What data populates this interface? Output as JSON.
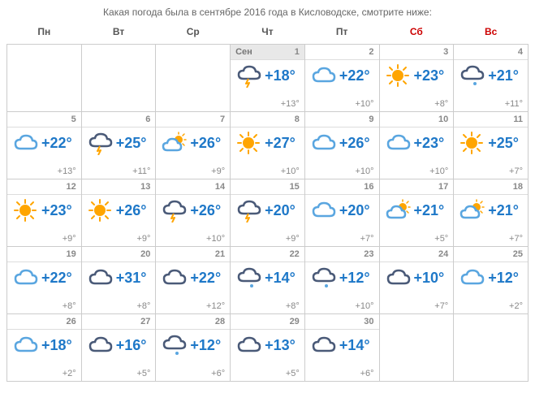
{
  "caption": "Какая погода была в сентябре 2016 года в Кисловодске, смотрите ниже:",
  "month_label": "Сен",
  "weekdays": [
    {
      "label": "Пн",
      "weekend": false
    },
    {
      "label": "Вт",
      "weekend": false
    },
    {
      "label": "Ср",
      "weekend": false
    },
    {
      "label": "Чт",
      "weekend": false
    },
    {
      "label": "Пт",
      "weekend": false
    },
    {
      "label": "Сб",
      "weekend": true
    },
    {
      "label": "Вс",
      "weekend": true
    }
  ],
  "colors": {
    "high_temp": "#1e78c8",
    "low_temp": "#888888",
    "weekend": "#cc0000",
    "border": "#cccccc",
    "cloud_blue": "#5aa6e0",
    "cloud_dark": "#4a5a78",
    "cloud_grey": "#8798b0",
    "sun": "#ffa500"
  },
  "icons": {
    "sun": "sun",
    "cloud_blue": "cloud_blue",
    "cloud_dark": "cloud_dark",
    "cloud_grey": "cloud_grey",
    "storm": "storm",
    "storm_blue": "storm_blue",
    "rain_dark": "rain_dark",
    "rain_blue": "rain_blue",
    "partly": "partly",
    "partly_blue": "partly_blue"
  },
  "grid": [
    [
      {
        "empty": true
      },
      {
        "empty": true
      },
      {
        "empty": true
      },
      {
        "day": 1,
        "first": true,
        "icon": "storm",
        "high": "+18°",
        "low": "+13°"
      },
      {
        "day": 2,
        "icon": "cloud_blue",
        "high": "+22°",
        "low": "+10°"
      },
      {
        "day": 3,
        "icon": "sun",
        "high": "+23°",
        "low": "+8°"
      },
      {
        "day": 4,
        "icon": "rain_dark",
        "high": "+21°",
        "low": "+11°"
      }
    ],
    [
      {
        "day": 5,
        "icon": "cloud_blue",
        "high": "+22°",
        "low": "+13°"
      },
      {
        "day": 6,
        "icon": "storm",
        "high": "+25°",
        "low": "+11°"
      },
      {
        "day": 7,
        "icon": "partly_blue",
        "high": "+26°",
        "low": "+9°"
      },
      {
        "day": 8,
        "icon": "sun",
        "high": "+27°",
        "low": "+10°"
      },
      {
        "day": 9,
        "icon": "cloud_blue",
        "high": "+26°",
        "low": "+10°"
      },
      {
        "day": 10,
        "icon": "cloud_blue",
        "high": "+23°",
        "low": "+10°"
      },
      {
        "day": 11,
        "icon": "sun",
        "high": "+25°",
        "low": "+7°"
      }
    ],
    [
      {
        "day": 12,
        "icon": "sun",
        "high": "+23°",
        "low": "+9°"
      },
      {
        "day": 13,
        "icon": "sun",
        "high": "+26°",
        "low": "+9°"
      },
      {
        "day": 14,
        "icon": "storm",
        "high": "+26°",
        "low": "+10°"
      },
      {
        "day": 15,
        "icon": "storm",
        "high": "+20°",
        "low": "+9°"
      },
      {
        "day": 16,
        "icon": "cloud_blue",
        "high": "+20°",
        "low": "+7°"
      },
      {
        "day": 17,
        "icon": "partly_blue",
        "high": "+21°",
        "low": "+5°"
      },
      {
        "day": 18,
        "icon": "partly_blue",
        "high": "+21°",
        "low": "+7°"
      }
    ],
    [
      {
        "day": 19,
        "icon": "cloud_blue",
        "high": "+22°",
        "low": "+8°"
      },
      {
        "day": 20,
        "icon": "cloud_dark",
        "high": "+31°",
        "low": "+8°"
      },
      {
        "day": 21,
        "icon": "cloud_dark",
        "high": "+22°",
        "low": "+12°"
      },
      {
        "day": 22,
        "icon": "rain_dark",
        "high": "+14°",
        "low": "+8°"
      },
      {
        "day": 23,
        "icon": "rain_dark",
        "high": "+12°",
        "low": "+10°"
      },
      {
        "day": 24,
        "icon": "cloud_dark",
        "high": "+10°",
        "low": "+7°"
      },
      {
        "day": 25,
        "icon": "cloud_blue",
        "high": "+12°",
        "low": "+2°"
      }
    ],
    [
      {
        "day": 26,
        "icon": "cloud_blue",
        "high": "+18°",
        "low": "+2°"
      },
      {
        "day": 27,
        "icon": "cloud_dark",
        "high": "+16°",
        "low": "+5°"
      },
      {
        "day": 28,
        "icon": "rain_dark",
        "high": "+12°",
        "low": "+6°"
      },
      {
        "day": 29,
        "icon": "cloud_dark",
        "high": "+13°",
        "low": "+5°"
      },
      {
        "day": 30,
        "icon": "cloud_dark",
        "high": "+14°",
        "low": "+6°"
      },
      {
        "empty": true
      },
      {
        "empty": true
      }
    ]
  ]
}
